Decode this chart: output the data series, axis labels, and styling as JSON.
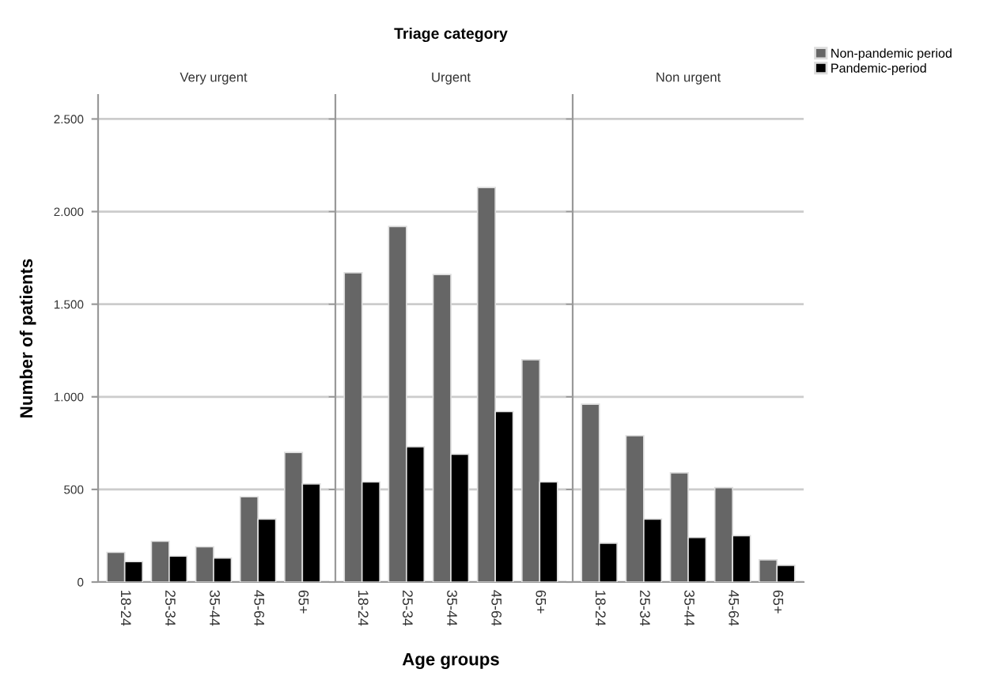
{
  "chart_data": [
    {
      "type": "bar",
      "subtitle": "Very urgent",
      "ylabel": "Number of patients",
      "categories": [
        "18-24",
        "25-34",
        "35-44",
        "45-64",
        "65+"
      ],
      "series": [
        {
          "color": "#666666",
          "values": [
            160,
            220,
            190,
            460,
            700
          ]
        },
        {
          "color": "#000000",
          "values": [
            110,
            140,
            130,
            340,
            530
          ]
        }
      ],
      "ylim": [
        0,
        2630
      ],
      "yticks": [
        0,
        500,
        {
          "value": 1000,
          "label": "1.000"
        },
        {
          "value": 1500,
          "label": "1.500"
        },
        {
          "value": 2000,
          "label": "2.000"
        },
        {
          "value": 2500,
          "label": "2.500"
        }
      ],
      "grid": "y"
    },
    {
      "type": "bar",
      "title": "Triage category",
      "subtitle": "Urgent",
      "xlabel": "Age groups",
      "categories": [
        "18-24",
        "25-34",
        "35-44",
        "45-64",
        "65+"
      ],
      "series": [
        {
          "color": "#666666",
          "values": [
            1670,
            1920,
            1660,
            2130,
            1200
          ]
        },
        {
          "color": "#000000",
          "values": [
            540,
            730,
            690,
            920,
            540
          ]
        }
      ],
      "ylim": [
        0,
        2630
      ],
      "yticks": [
        0,
        500,
        1000,
        1500,
        2000,
        2500
      ],
      "grid": "y",
      "tick_labels": "x"
    },
    {
      "type": "bar",
      "subtitle": "Non urgent",
      "categories": [
        "18-24",
        "25-34",
        "35-44",
        "45-64",
        "65+"
      ],
      "series": [
        {
          "name": "Non-pandemic period",
          "color": "#666666",
          "values": [
            960,
            790,
            590,
            510,
            120
          ]
        },
        {
          "name": "Pandemic-period",
          "color": "#000000",
          "values": [
            210,
            340,
            240,
            250,
            90
          ]
        }
      ],
      "ylim": [
        0,
        2630
      ],
      "yticks": [
        0,
        500,
        1000,
        1500,
        2000,
        2500
      ],
      "grid": "y",
      "tick_labels": "x",
      "legend": "top right"
    }
  ]
}
